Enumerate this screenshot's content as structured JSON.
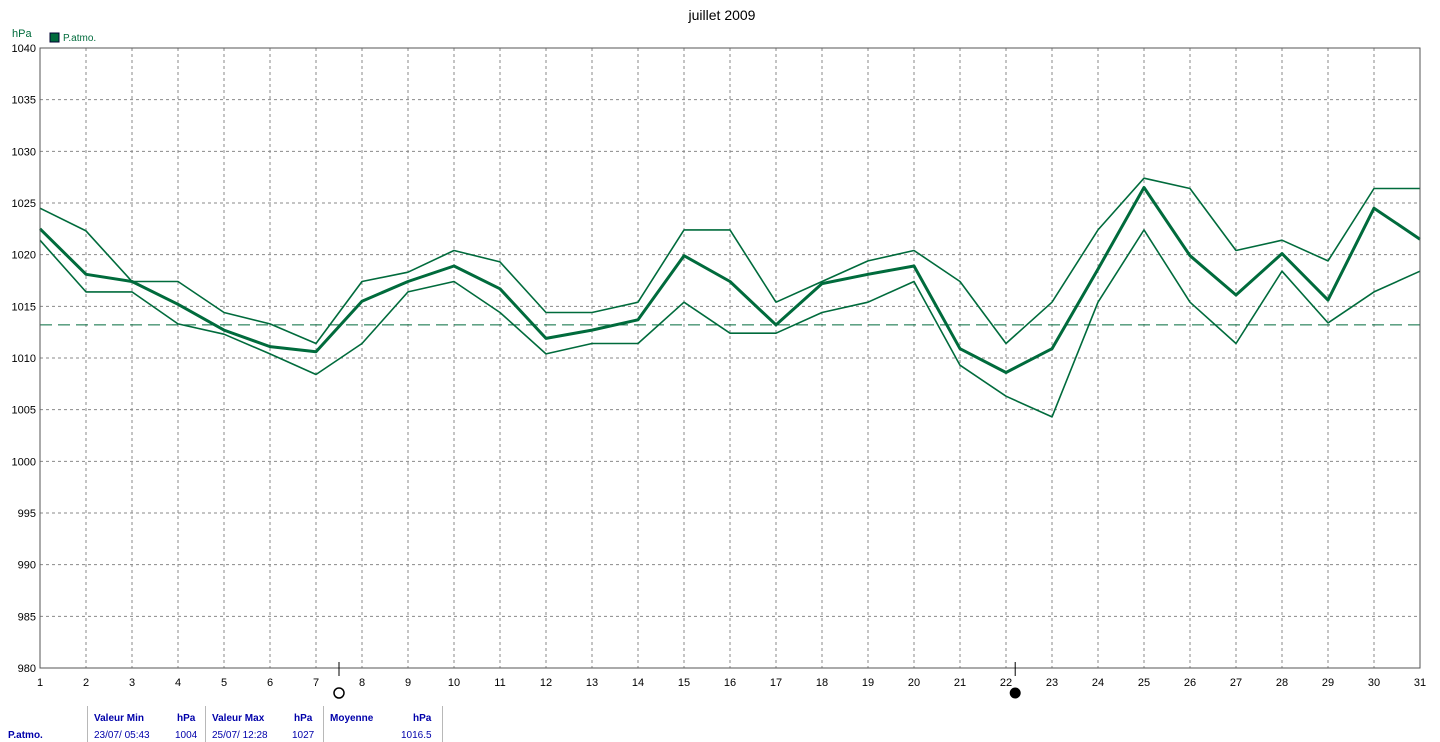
{
  "chart_data": {
    "type": "line",
    "title": "juillet 2009",
    "ylabel": "hPa",
    "x": [
      1,
      2,
      3,
      4,
      5,
      6,
      7,
      8,
      9,
      10,
      11,
      12,
      13,
      14,
      15,
      16,
      17,
      18,
      19,
      20,
      21,
      22,
      23,
      24,
      25,
      26,
      27,
      28,
      29,
      30,
      31
    ],
    "xlim": [
      1,
      31
    ],
    "ylim": [
      980,
      1040
    ],
    "yticks": [
      980,
      985,
      990,
      995,
      1000,
      1005,
      1010,
      1015,
      1020,
      1025,
      1030,
      1035,
      1040
    ],
    "grid": true,
    "legend": {
      "label": "P.atmo.",
      "color": "#006b3c",
      "placement": "top-left"
    },
    "series": [
      {
        "role": "max",
        "values": [
          1024.5,
          1022.3,
          1017.4,
          1017.4,
          1014.4,
          1013.3,
          1011.4,
          1017.4,
          1018.3,
          1020.4,
          1019.3,
          1014.4,
          1014.4,
          1015.4,
          1022.4,
          1022.4,
          1015.4,
          1017.4,
          1019.4,
          1020.4,
          1017.4,
          1011.4,
          1015.4,
          1022.4,
          1027.4,
          1026.4,
          1020.4,
          1021.4,
          1019.4,
          1026.4,
          1026.4
        ]
      },
      {
        "role": "mean",
        "values": [
          1022.5,
          1018.1,
          1017.4,
          1015.2,
          1012.7,
          1011.1,
          1010.6,
          1015.5,
          1017.4,
          1018.9,
          1016.7,
          1011.9,
          1012.7,
          1013.7,
          1019.9,
          1017.4,
          1013.2,
          1017.2,
          1018.1,
          1018.9,
          1010.9,
          1008.6,
          1010.9,
          1018.6,
          1026.5,
          1019.9,
          1016.1,
          1020.1,
          1015.6,
          1024.5,
          1021.5
        ]
      },
      {
        "role": "min",
        "values": [
          1021.4,
          1016.4,
          1016.4,
          1013.3,
          1012.3,
          1010.4,
          1008.4,
          1011.4,
          1016.4,
          1017.4,
          1014.4,
          1010.4,
          1011.4,
          1011.4,
          1015.4,
          1012.4,
          1012.4,
          1014.4,
          1015.4,
          1017.4,
          1009.3,
          1006.3,
          1004.3,
          1015.4,
          1022.4,
          1015.4,
          1011.4,
          1018.4,
          1013.4,
          1016.4,
          1018.4
        ]
      }
    ],
    "reference_line": {
      "style": "dashed",
      "y": 1013.2
    },
    "markers": [
      {
        "x": 7.5,
        "symbol": "open-circle"
      },
      {
        "x": 22.2,
        "symbol": "filled-circle"
      }
    ],
    "line_color": "#006b3c"
  },
  "stats": {
    "headers": [
      "Valeur Min",
      "hPa",
      "Valeur Max",
      "hPa",
      "Moyenne",
      "hPa"
    ],
    "row_label": "P.atmo.",
    "min_datetime": "23/07/  05:43",
    "min_value": "1004",
    "max_datetime": "25/07/  12:28",
    "max_value": "1027",
    "mean_value": "1016.5"
  }
}
